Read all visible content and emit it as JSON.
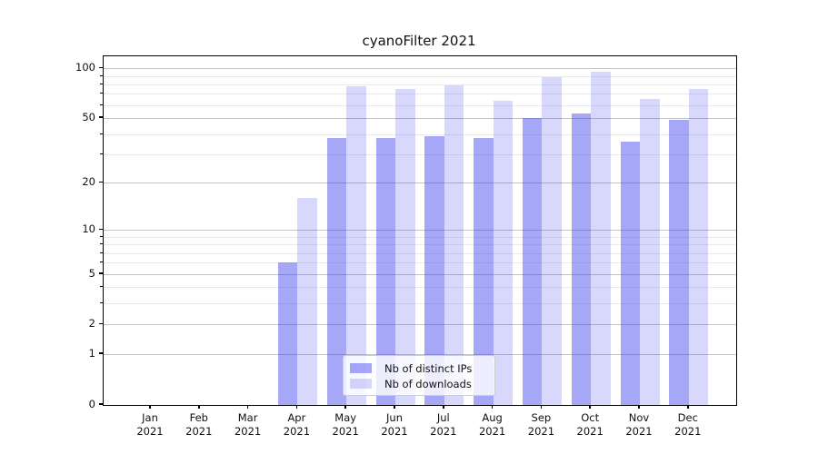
{
  "title": "cyanoFilter 2021",
  "chart_data": {
    "type": "bar",
    "title": "cyanoFilter 2021",
    "y_scale": "log1p",
    "ylim": [
      0,
      118.75
    ],
    "grid": true,
    "yticks_major": [
      0,
      1,
      2,
      5,
      10,
      20,
      50,
      100
    ],
    "yticks_minor": [
      3,
      4,
      6,
      7,
      8,
      9,
      30,
      40,
      60,
      70,
      80,
      90
    ],
    "categories": [
      {
        "month": "Jan",
        "year": "2021"
      },
      {
        "month": "Feb",
        "year": "2021"
      },
      {
        "month": "Mar",
        "year": "2021"
      },
      {
        "month": "Apr",
        "year": "2021"
      },
      {
        "month": "May",
        "year": "2021"
      },
      {
        "month": "Jun",
        "year": "2021"
      },
      {
        "month": "Jul",
        "year": "2021"
      },
      {
        "month": "Aug",
        "year": "2021"
      },
      {
        "month": "Sep",
        "year": "2021"
      },
      {
        "month": "Oct",
        "year": "2021"
      },
      {
        "month": "Nov",
        "year": "2021"
      },
      {
        "month": "Dec",
        "year": "2021"
      }
    ],
    "series": [
      {
        "name": "Nb of distinct IPs",
        "color": "rgba(60,60,240,0.45)",
        "values": [
          0,
          0,
          0,
          6,
          38,
          38,
          39,
          38,
          50,
          53,
          36,
          49
        ]
      },
      {
        "name": "Nb of downloads",
        "color": "rgba(60,60,240,0.20)",
        "values": [
          0,
          0,
          0,
          16,
          78,
          75,
          79,
          64,
          88,
          95,
          65,
          75
        ]
      }
    ],
    "legend_position": "lower center"
  },
  "colors": {
    "bar_dark": "rgba(60,60,240,0.45)",
    "bar_light": "rgba(60,60,240,0.20)",
    "grid_major": "#c4c4c4",
    "grid_minor": "#e9e9e9",
    "spine": "#000000",
    "legend_border": "#cccccc"
  }
}
